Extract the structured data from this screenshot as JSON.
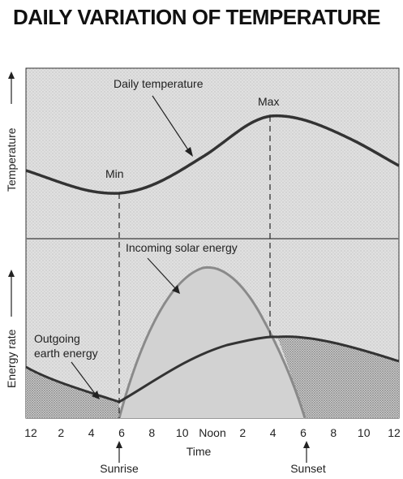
{
  "title": "DAILY VARIATION OF TEMPERATURE",
  "panels": {
    "temperature": {
      "ylabel": "Temperature",
      "curve_label": "Daily temperature",
      "min_label": "Min",
      "max_label": "Max"
    },
    "energy": {
      "ylabel": "Energy rate",
      "incoming_label": "Incoming solar energy",
      "outgoing_label_line1": "Outgoing",
      "outgoing_label_line2": "earth energy"
    }
  },
  "x_axis": {
    "label": "Time",
    "ticks": [
      "12",
      "2",
      "4",
      "6",
      "8",
      "10",
      "Noon",
      "2",
      "4",
      "6",
      "8",
      "10",
      "12"
    ]
  },
  "markers": {
    "sunrise": "Sunrise",
    "sunset": "Sunset"
  },
  "colors": {
    "panel_fill": "#dcdcdc",
    "curve": "#3a3a3a",
    "incoming_curve": "#8a8a8a",
    "stipple": "#9a9a9a"
  }
}
